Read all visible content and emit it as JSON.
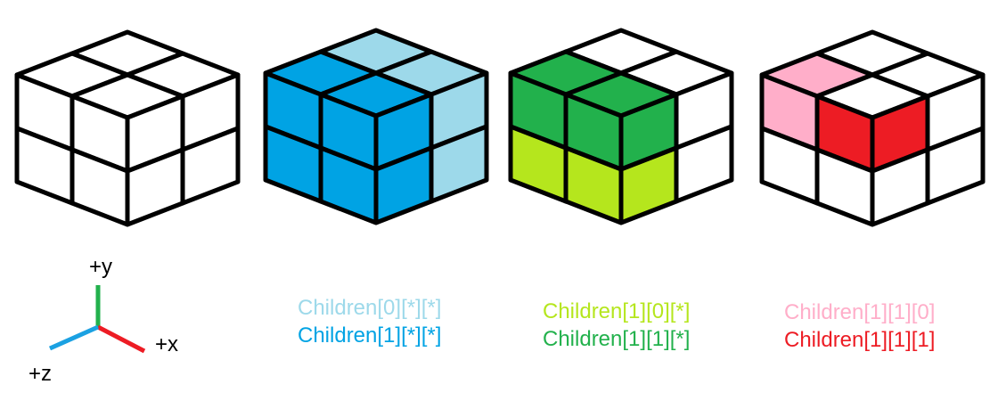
{
  "colors": {
    "outline": "#000000",
    "white": "#ffffff",
    "blue_light": "#9dd9ea",
    "blue_dark": "#00a3e4",
    "green_light": "#b5e61d",
    "green_dark": "#22b14c",
    "pink": "#ffaec9",
    "red": "#ed1c24"
  },
  "cubes": [
    {
      "name": "cube-all-white",
      "top": [
        "white",
        "white",
        "white",
        "white"
      ],
      "left": [
        "white",
        "white",
        "white",
        "white"
      ],
      "right": [
        "white",
        "white",
        "white",
        "white"
      ]
    },
    {
      "name": "cube-children-x",
      "top": [
        "blue_light",
        "blue_light",
        "blue_dark",
        "blue_dark"
      ],
      "left": [
        "blue_dark",
        "blue_dark",
        "blue_dark",
        "blue_dark"
      ],
      "right": [
        "blue_dark",
        "blue_light",
        "blue_dark",
        "blue_light"
      ]
    },
    {
      "name": "cube-children-1-y",
      "top": [
        "white",
        "white",
        "green_dark",
        "green_dark"
      ],
      "left": [
        "green_dark",
        "green_dark",
        "green_light",
        "green_light"
      ],
      "right": [
        "green_dark",
        "white",
        "green_light",
        "white"
      ]
    },
    {
      "name": "cube-children-1-1-z",
      "top": [
        "white",
        "white",
        "pink",
        "white"
      ],
      "left": [
        "pink",
        "red",
        "white",
        "white"
      ],
      "right": [
        "red",
        "white",
        "white",
        "white"
      ]
    }
  ],
  "captions": [
    {
      "line1": "Children[0][*][*]",
      "color1": "#9dd9ea",
      "line2": "Children[1][*][*]",
      "color2": "#00a3e4"
    },
    {
      "line1": "Children[1][0][*]",
      "color1": "#b5e61d",
      "line2": "Children[1][1][*]",
      "color2": "#22b14c"
    },
    {
      "line1": "Children[1][1][0]",
      "color1": "#ffaec9",
      "line2": "Children[1][1][1]",
      "color2": "#ed1c24"
    }
  ],
  "axes": {
    "y_label": "+y",
    "x_label": "+x",
    "z_label": "+z",
    "y_color": "#22b14c",
    "x_color": "#ed1c24",
    "z_color": "#1ba1e2"
  }
}
